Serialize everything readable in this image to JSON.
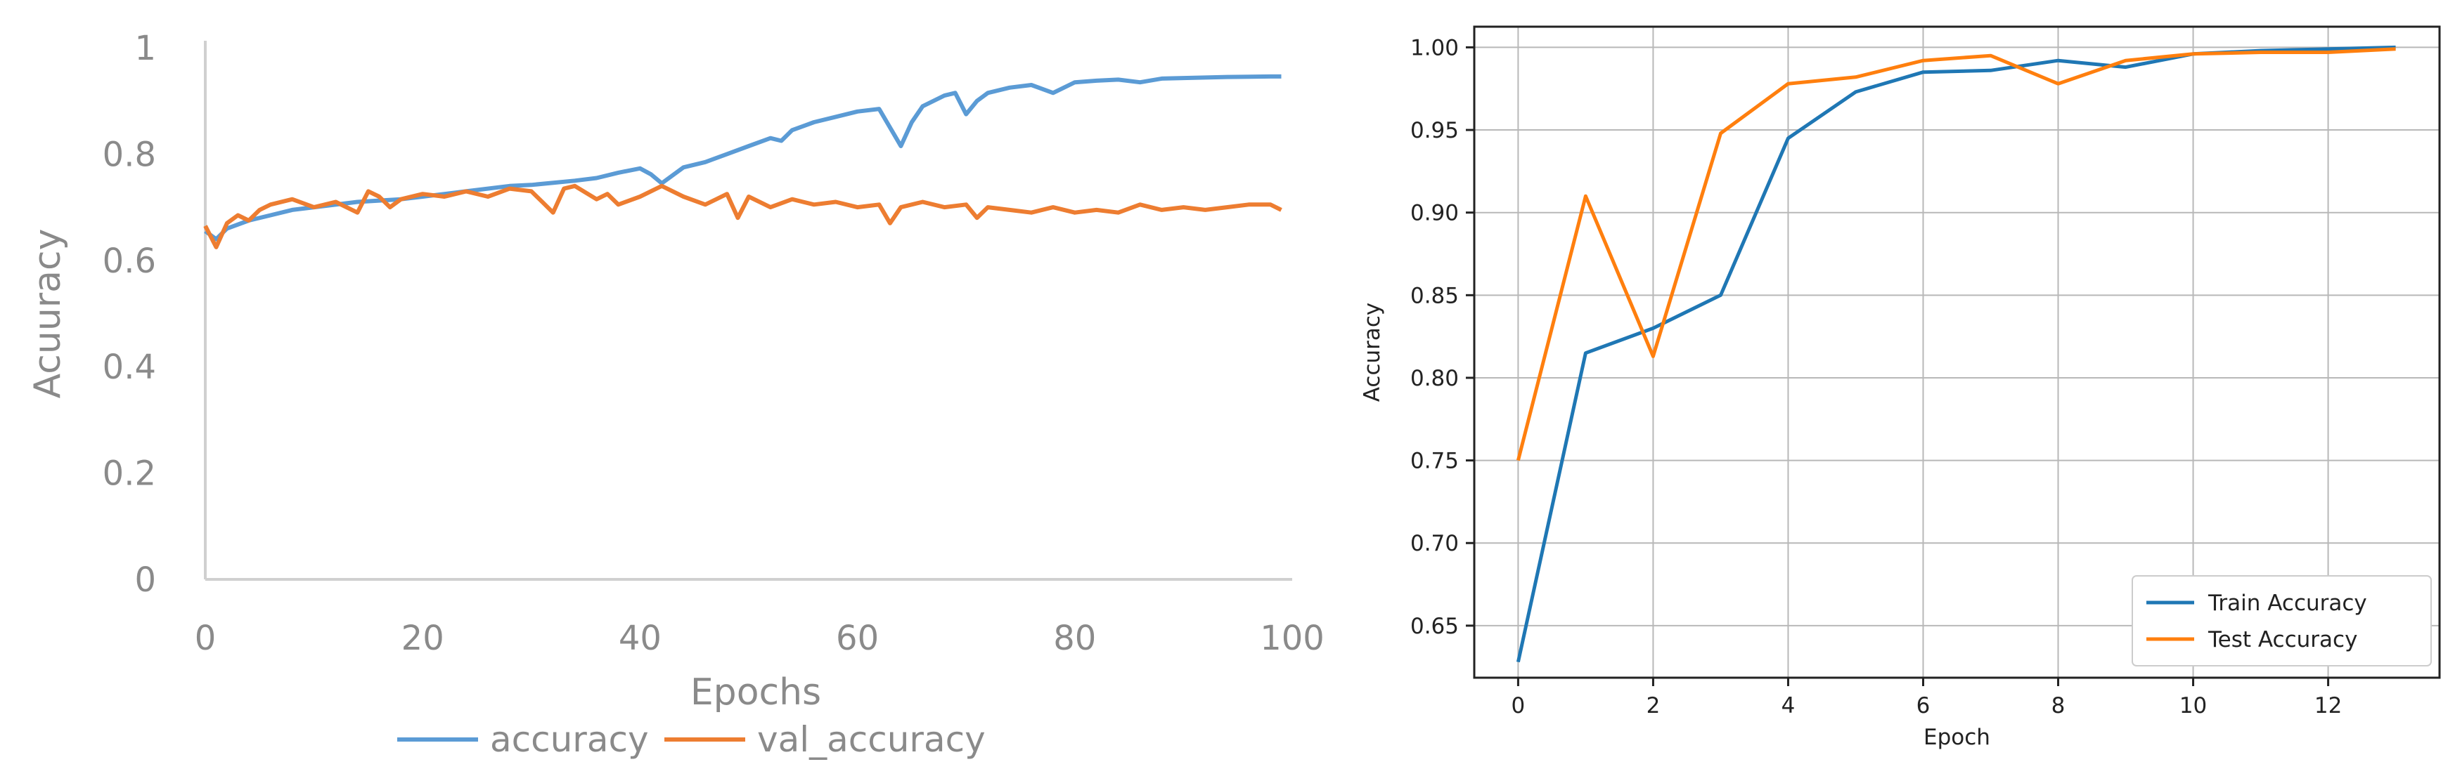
{
  "chart_data": [
    {
      "type": "line",
      "xlabel": "Epochs",
      "ylabel": "Acuuracy",
      "xlim": [
        0,
        100
      ],
      "ylim": [
        0,
        1
      ],
      "xticks": [
        "0",
        "20",
        "40",
        "60",
        "80",
        "100"
      ],
      "yticks": [
        "0",
        "0.2",
        "0.4",
        "0.6",
        "0.8",
        "1"
      ],
      "grid": false,
      "legend_position": "bottom",
      "series": [
        {
          "name": "accuracy",
          "color": "#5b9bd5",
          "x": [
            0,
            1,
            2,
            4,
            6,
            8,
            10,
            14,
            18,
            20,
            24,
            28,
            30,
            34,
            36,
            38,
            40,
            41,
            42,
            44,
            46,
            48,
            50,
            52,
            53,
            54,
            56,
            58,
            60,
            62,
            63,
            64,
            65,
            66,
            68,
            69,
            70,
            71,
            72,
            74,
            76,
            78,
            80,
            82,
            84,
            86,
            88,
            90,
            94,
            98,
            99
          ],
          "y": [
            0.655,
            0.64,
            0.66,
            0.675,
            0.685,
            0.695,
            0.7,
            0.71,
            0.715,
            0.72,
            0.73,
            0.74,
            0.742,
            0.75,
            0.755,
            0.765,
            0.773,
            0.762,
            0.745,
            0.775,
            0.785,
            0.8,
            0.815,
            0.83,
            0.825,
            0.845,
            0.86,
            0.87,
            0.88,
            0.885,
            0.85,
            0.815,
            0.86,
            0.89,
            0.91,
            0.915,
            0.875,
            0.9,
            0.915,
            0.925,
            0.93,
            0.915,
            0.935,
            0.938,
            0.94,
            0.935,
            0.942,
            0.943,
            0.945,
            0.946,
            0.946
          ]
        },
        {
          "name": "val_accuracy",
          "color": "#ed7d31",
          "x": [
            0,
            1,
            2,
            3,
            4,
            5,
            6,
            8,
            10,
            12,
            14,
            15,
            16,
            17,
            18,
            20,
            22,
            24,
            26,
            28,
            30,
            31,
            32,
            33,
            34,
            36,
            37,
            38,
            40,
            42,
            44,
            46,
            48,
            49,
            50,
            52,
            54,
            56,
            58,
            60,
            62,
            63,
            64,
            66,
            68,
            70,
            71,
            72,
            74,
            76,
            78,
            80,
            82,
            84,
            86,
            88,
            90,
            92,
            94,
            96,
            98,
            99
          ],
          "y": [
            0.665,
            0.625,
            0.67,
            0.685,
            0.675,
            0.695,
            0.705,
            0.715,
            0.7,
            0.71,
            0.69,
            0.73,
            0.72,
            0.7,
            0.715,
            0.725,
            0.72,
            0.73,
            0.72,
            0.735,
            0.73,
            0.71,
            0.69,
            0.735,
            0.74,
            0.715,
            0.725,
            0.705,
            0.72,
            0.74,
            0.72,
            0.705,
            0.725,
            0.68,
            0.72,
            0.7,
            0.715,
            0.705,
            0.71,
            0.7,
            0.705,
            0.67,
            0.7,
            0.71,
            0.7,
            0.705,
            0.68,
            0.7,
            0.695,
            0.69,
            0.7,
            0.69,
            0.695,
            0.69,
            0.705,
            0.695,
            0.7,
            0.695,
            0.7,
            0.705,
            0.705,
            0.695
          ]
        }
      ]
    },
    {
      "type": "line",
      "xlabel": "Epoch",
      "ylabel": "Accuracy",
      "xlim": [
        -0.65,
        13.65
      ],
      "ylim": [
        0.6185,
        1.0125
      ],
      "xticks": [
        "0",
        "2",
        "4",
        "6",
        "8",
        "10",
        "12"
      ],
      "yticks": [
        "0.65",
        "0.70",
        "0.75",
        "0.80",
        "0.85",
        "0.90",
        "0.95",
        "1.00"
      ],
      "grid": true,
      "legend_position": "bottom-right",
      "series": [
        {
          "name": "Train Accuracy",
          "color": "#1f77b4",
          "x": [
            0,
            1,
            2,
            3,
            4,
            5,
            6,
            7,
            8,
            9,
            10,
            11,
            12,
            13
          ],
          "y": [
            0.628,
            0.815,
            0.83,
            0.85,
            0.945,
            0.973,
            0.985,
            0.986,
            0.992,
            0.988,
            0.996,
            0.998,
            0.999,
            1.0
          ]
        },
        {
          "name": "Test Accuracy",
          "color": "#ff7f0e",
          "x": [
            0,
            1,
            2,
            3,
            4,
            5,
            6,
            7,
            8,
            9,
            10,
            11,
            12,
            13
          ],
          "y": [
            0.75,
            0.91,
            0.813,
            0.948,
            0.978,
            0.982,
            0.992,
            0.995,
            0.978,
            0.992,
            0.996,
            0.997,
            0.997,
            0.999
          ]
        }
      ]
    }
  ]
}
